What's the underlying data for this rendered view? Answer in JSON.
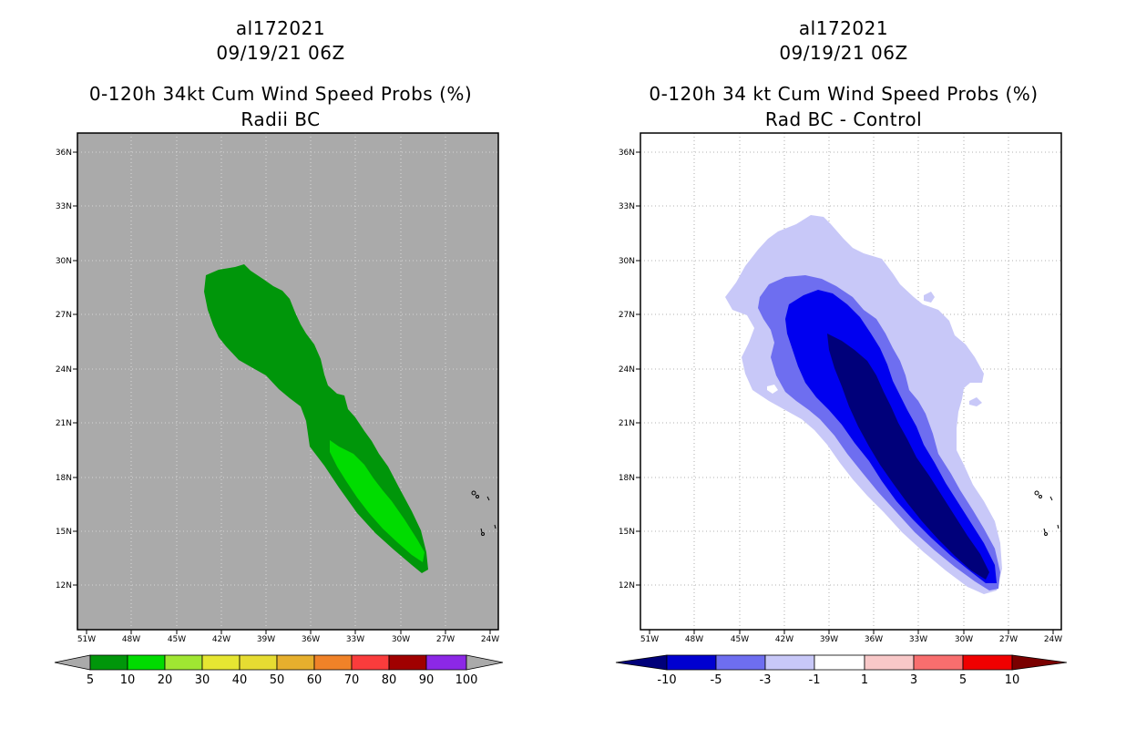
{
  "left_panel": {
    "title_line1": "al172021",
    "title_line2": "09/19/21 06Z",
    "title_line3": "0-120h 34kt Cum Wind Speed Probs (%)",
    "title_line4": "Radii BC",
    "x_ticks": [
      "51W",
      "48W",
      "45W",
      "42W",
      "39W",
      "36W",
      "33W",
      "30W",
      "27W",
      "24W"
    ],
    "y_ticks": [
      "36N",
      "33N",
      "30N",
      "27N",
      "24N",
      "21N",
      "18N",
      "15N",
      "12N"
    ],
    "background_color": "#aaaaaa",
    "colorbar": {
      "labels": [
        "5",
        "10",
        "20",
        "30",
        "40",
        "50",
        "60",
        "70",
        "80",
        "90",
        "100"
      ],
      "colors": [
        "#00960a",
        "#00dc00",
        "#a0e632",
        "#e6e632",
        "#e6dc32",
        "#e6af2d",
        "#f08228",
        "#fa3c3c",
        "#a00000",
        "#8c28e6"
      ]
    }
  },
  "right_panel": {
    "title_line1": "al172021",
    "title_line2": "09/19/21 06Z",
    "title_line3": "0-120h 34 kt Cum Wind Speed Probs (%)",
    "title_line4": "Rad BC - Control",
    "x_ticks": [
      "51W",
      "48W",
      "45W",
      "42W",
      "39W",
      "36W",
      "33W",
      "30W",
      "27W",
      "24W"
    ],
    "y_ticks": [
      "36N",
      "33N",
      "30N",
      "27N",
      "24N",
      "21N",
      "18N",
      "15N",
      "12N"
    ],
    "colorbar": {
      "labels": [
        "-10",
        "-5",
        "-3",
        "-1",
        "1",
        "3",
        "5",
        "10"
      ],
      "colors": [
        "#0000d0",
        "#6e6ef0",
        "#c8c8f8",
        "#ffffff",
        "#f8c8c8",
        "#f86e6e",
        "#f00000"
      ]
    }
  }
}
